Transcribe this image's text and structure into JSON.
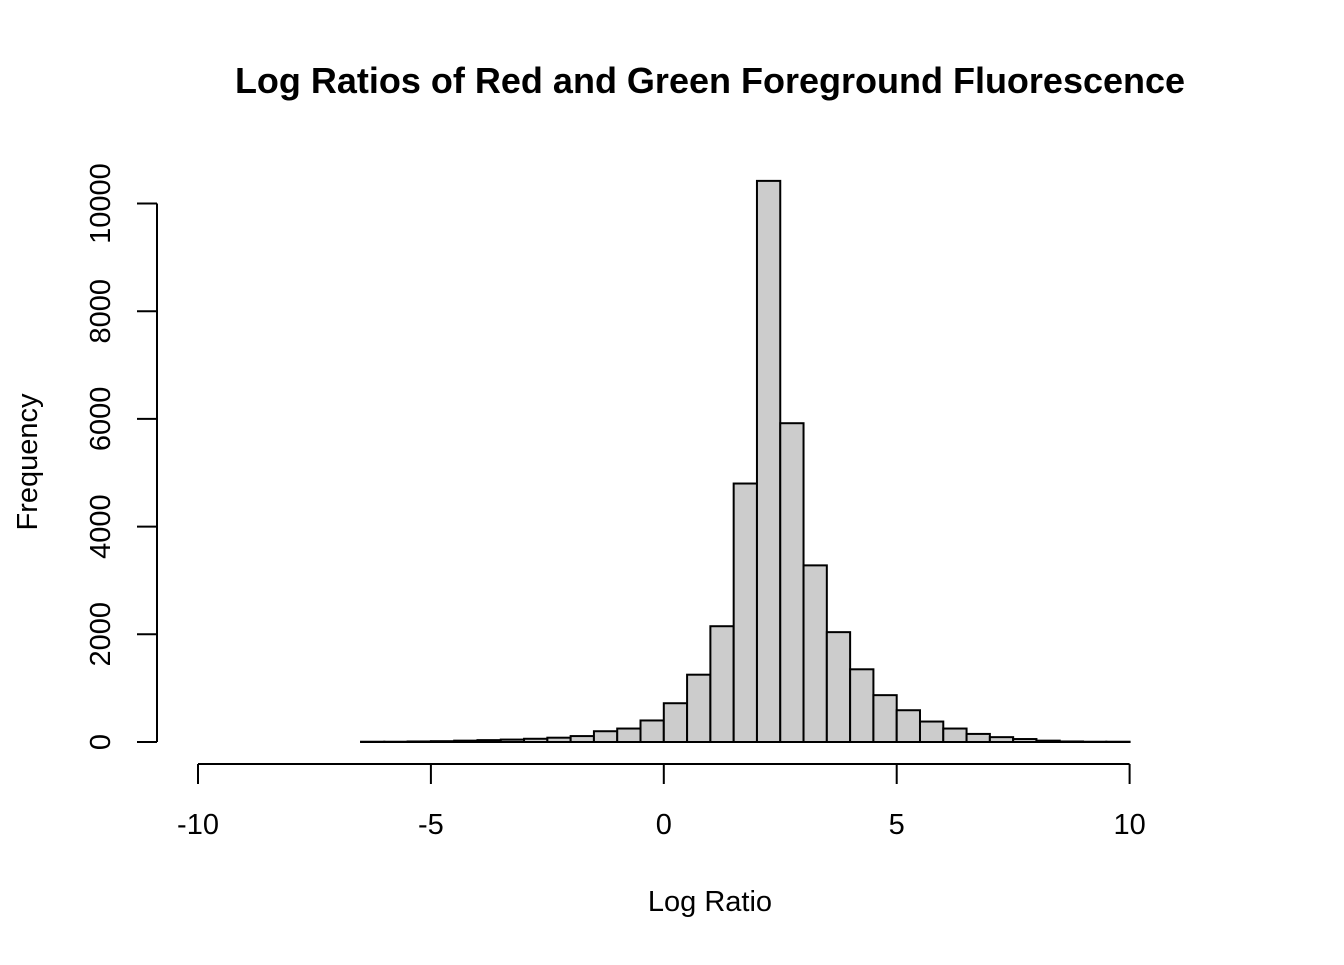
{
  "chart_data": {
    "type": "bar",
    "title": "Log Ratios of Red and Green Foreground Fluorescence",
    "xlabel": "Log Ratio",
    "ylabel": "Frequency",
    "xlim": [
      -10,
      12
    ],
    "ylim": [
      0,
      10400
    ],
    "x_ticks": [
      -10,
      -5,
      0,
      5,
      10
    ],
    "x_tick_labels": [
      "-10",
      "-5",
      "0",
      "5",
      "10"
    ],
    "y_ticks": [
      0,
      2000,
      4000,
      6000,
      8000,
      10000
    ],
    "y_tick_labels": [
      "0",
      "2000",
      "4000",
      "6000",
      "8000",
      "10000"
    ],
    "bin_width": 0.5,
    "bin_start": -9.5,
    "values": [
      0,
      0,
      0,
      0,
      0,
      0,
      5,
      5,
      10,
      15,
      25,
      35,
      45,
      60,
      80,
      110,
      200,
      250,
      400,
      720,
      1250,
      2150,
      4800,
      10420,
      5920,
      3280,
      2040,
      1350,
      870,
      590,
      380,
      250,
      150,
      90,
      55,
      25,
      10,
      5,
      5,
      0,
      0,
      0,
      0,
      0,
      0,
      0,
      0,
      0,
      0,
      0,
      0,
      0,
      0,
      0
    ],
    "bar_fill": "#cccccc",
    "grid": false,
    "legend": "none"
  }
}
